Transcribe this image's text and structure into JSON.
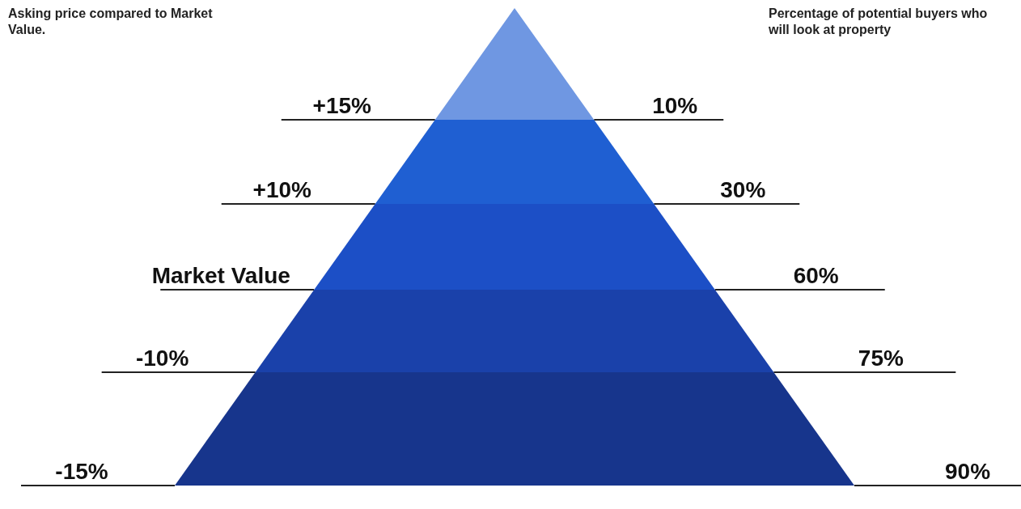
{
  "chart_data": {
    "type": "other",
    "ylabel": "Asking price compared to Market Value.",
    "y2label": "Percentage of potential buyers who will look at property",
    "categories": [
      "+15%",
      "+10%",
      "Market Value",
      "-10%",
      "-15%"
    ],
    "values": [
      10,
      30,
      60,
      75,
      90
    ],
    "value_labels": [
      "10%",
      "30%",
      "60%",
      "75%",
      "90%"
    ],
    "colors": [
      "#6f97e2",
      "#1f5fd2",
      "#1c4fc6",
      "#1a41aa",
      "#17358c"
    ]
  }
}
